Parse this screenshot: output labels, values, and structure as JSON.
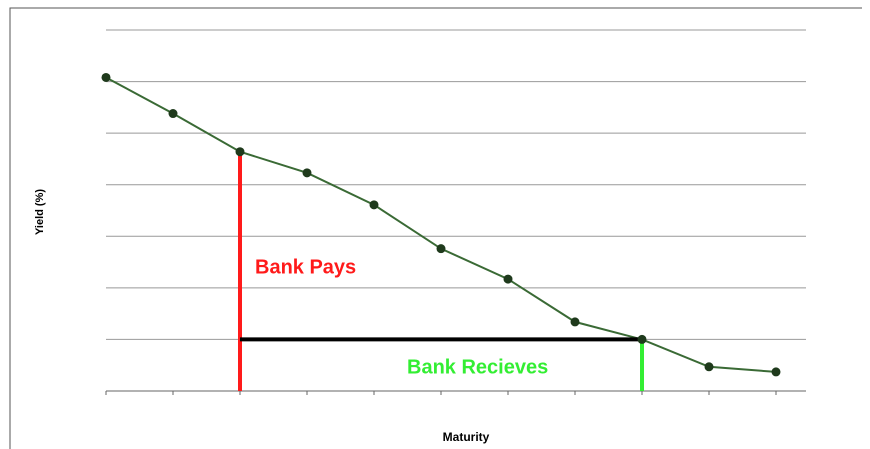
{
  "chart_data": {
    "type": "line",
    "y_label": "Yield (%)",
    "x_label": "Maturity",
    "categories": [
      null,
      null,
      null,
      null,
      null,
      null,
      null,
      null,
      null,
      null,
      null
    ],
    "series": [
      {
        "color": "#3a6a35",
        "values": [
          6.08,
          5.38,
          4.64,
          4.23,
          3.61,
          2.76,
          2.17,
          1.34,
          1.0,
          0.47,
          0.37
        ]
      }
    ],
    "ylim": [
      0,
      7
    ],
    "yticks": [
      0,
      1,
      2,
      3,
      4,
      5,
      6,
      7
    ],
    "grid": true,
    "annotations": [
      {
        "text": "Bank Pays",
        "color": "#ff1a1a"
      },
      {
        "text": "Bank Recieves",
        "color": "#33ee33"
      }
    ],
    "level_line_color": "#000000"
  }
}
